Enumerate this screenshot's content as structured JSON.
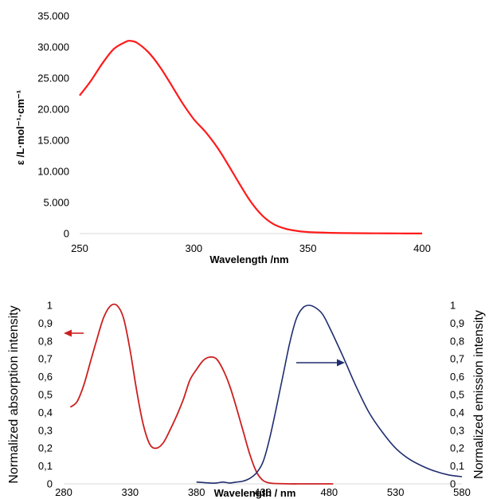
{
  "chart_data": [
    {
      "type": "line",
      "ylabel": "ε /L·mol⁻¹·cm⁻¹",
      "xlabel": "Wavelength /nm",
      "xlim": [
        250,
        400
      ],
      "ylim": [
        0,
        35000
      ],
      "xticks": [
        "250",
        "300",
        "350",
        "400"
      ],
      "yticks": [
        "0",
        "5.000",
        "10.000",
        "15.000",
        "20.000",
        "25.000",
        "30.000",
        "35.000"
      ],
      "grid": false,
      "color": "#ff1a1a",
      "x": [
        250,
        255,
        260,
        265,
        270,
        272,
        275,
        280,
        285,
        290,
        295,
        300,
        305,
        310,
        315,
        320,
        325,
        330,
        335,
        340,
        345,
        350,
        360,
        370,
        380,
        390,
        400
      ],
      "y": [
        22200,
        24600,
        27400,
        29700,
        30800,
        31000,
        30700,
        29200,
        26900,
        24000,
        21000,
        18400,
        16400,
        14000,
        11100,
        8000,
        5100,
        2900,
        1500,
        800,
        430,
        250,
        120,
        70,
        40,
        20,
        10
      ]
    },
    {
      "type": "line",
      "xlabel": "Wavelength / nm",
      "ylabel_left": "Normalized absorption  intensity",
      "ylabel_right": "Normalized emission intensity",
      "xlim": [
        280,
        580
      ],
      "ylim": [
        0,
        1
      ],
      "xticks": [
        "280",
        "330",
        "380",
        "430",
        "480",
        "530",
        "580"
      ],
      "yticks": [
        "0",
        "0,1",
        "0,2",
        "0,3",
        "0,4",
        "0,5",
        "0,6",
        "0,7",
        "0,8",
        "0,9",
        "1"
      ],
      "grid": false,
      "series": [
        {
          "color": "#cc1f1f",
          "axis": "left",
          "arrow": "left",
          "x": [
            285,
            290,
            295,
            300,
            305,
            310,
            315,
            320,
            325,
            330,
            335,
            340,
            345,
            350,
            355,
            360,
            365,
            370,
            375,
            380,
            385,
            390,
            395,
            400,
            405,
            410,
            415,
            420,
            425,
            430,
            435,
            440,
            450,
            460,
            470,
            483
          ],
          "y": [
            0.43,
            0.46,
            0.55,
            0.68,
            0.81,
            0.93,
            0.995,
            1.0,
            0.93,
            0.75,
            0.52,
            0.33,
            0.22,
            0.2,
            0.23,
            0.3,
            0.38,
            0.47,
            0.58,
            0.64,
            0.69,
            0.71,
            0.7,
            0.64,
            0.55,
            0.43,
            0.3,
            0.17,
            0.07,
            0.02,
            0.005,
            0.002,
            0,
            0,
            0,
            0
          ]
        },
        {
          "color": "#1f2d6e",
          "axis": "right",
          "arrow": "right",
          "x": [
            380,
            390,
            395,
            400,
            405,
            410,
            415,
            420,
            425,
            430,
            435,
            440,
            445,
            450,
            455,
            460,
            465,
            470,
            475,
            480,
            490,
            500,
            510,
            520,
            530,
            540,
            550,
            560,
            570,
            580
          ],
          "y": [
            0.01,
            0.005,
            0.005,
            0.01,
            0.005,
            0.01,
            0.015,
            0.03,
            0.06,
            0.12,
            0.25,
            0.42,
            0.6,
            0.78,
            0.92,
            0.985,
            1.0,
            0.985,
            0.95,
            0.88,
            0.72,
            0.55,
            0.4,
            0.29,
            0.2,
            0.14,
            0.1,
            0.07,
            0.05,
            0.04
          ]
        }
      ]
    }
  ]
}
